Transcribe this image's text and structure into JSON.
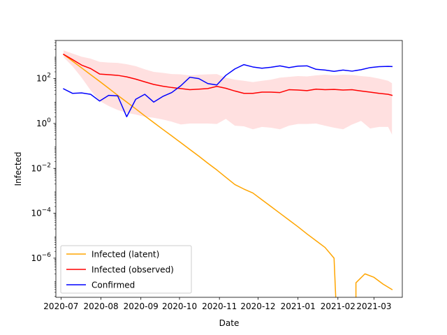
{
  "chart_data": {
    "type": "line",
    "xlabel": "Date",
    "ylabel": "Infected",
    "y_scale": "log",
    "ylim": [
      1.8e-08,
      5000
    ],
    "xlim": [
      "2020-06-27",
      "2021-03-23"
    ],
    "grid": false,
    "legend_position": "lower-left",
    "x_ticks": [
      "2020-07-01",
      "2020-08-01",
      "2020-09-01",
      "2020-10-01",
      "2020-11-01",
      "2020-12-01",
      "2021-01-01",
      "2021-02-01",
      "2021-03-01"
    ],
    "x_tick_labels": [
      "2020-07",
      "2020-08",
      "2020-09",
      "2020-10",
      "2020-11",
      "2020-12",
      "2021-01",
      "2021-02",
      "2021-03"
    ],
    "y_ticks": [
      1e-06,
      0.0001,
      0.01,
      1,
      100
    ],
    "y_tick_labels": [
      {
        "base": "10",
        "exp": "−6"
      },
      {
        "base": "10",
        "exp": "−4"
      },
      {
        "base": "10",
        "exp": "−2"
      },
      {
        "base": "10",
        "exp": "0"
      },
      {
        "base": "10",
        "exp": "2"
      }
    ],
    "series": [
      {
        "name": "Infected (latent)",
        "color": "#ffa500",
        "segments": [
          {
            "x": [
              "2020-07-03",
              "2020-07-10",
              "2020-07-17",
              "2020-07-24",
              "2020-07-31",
              "2020-08-07",
              "2020-08-14",
              "2020-08-21",
              "2020-08-28",
              "2020-09-04",
              "2020-09-11",
              "2020-09-18",
              "2020-09-25",
              "2020-10-02",
              "2020-10-09",
              "2020-10-16",
              "2020-10-23",
              "2020-10-30",
              "2020-11-06",
              "2020-11-13",
              "2020-11-20",
              "2020-11-27",
              "2020-12-04",
              "2020-12-11",
              "2020-12-18",
              "2020-12-25",
              "2021-01-01",
              "2021-01-08",
              "2021-01-15",
              "2021-01-22",
              "2021-01-29",
              "2021-02-01"
            ],
            "y": [
              1200,
              600,
              300,
              150,
              75,
              37,
              18,
              9,
              4.5,
              2.2,
              1.1,
              0.55,
              0.28,
              0.14,
              0.07,
              0.035,
              0.017,
              0.0085,
              0.004,
              0.0019,
              0.0012,
              0.0008,
              0.0004,
              0.0002,
              0.0001,
              5e-05,
              2.5e-05,
              1.2e-05,
              6e-06,
              3e-06,
              1e-06,
              1e-10
            ]
          },
          {
            "x": [
              "2021-02-15",
              "2021-02-15",
              "2021-02-22",
              "2021-03-01",
              "2021-03-08",
              "2021-03-15"
            ],
            "y": [
              1e-10,
              8e-08,
              2e-07,
              1.4e-07,
              7e-08,
              4e-08
            ]
          }
        ]
      },
      {
        "name": "Infected (observed)",
        "color": "#ff0000",
        "x": [
          "2020-07-03",
          "2020-07-10",
          "2020-07-17",
          "2020-07-24",
          "2020-07-31",
          "2020-08-07",
          "2020-08-14",
          "2020-08-21",
          "2020-08-28",
          "2020-09-04",
          "2020-09-11",
          "2020-09-18",
          "2020-09-25",
          "2020-10-02",
          "2020-10-09",
          "2020-10-16",
          "2020-10-23",
          "2020-10-30",
          "2020-11-06",
          "2020-11-13",
          "2020-11-20",
          "2020-11-27",
          "2020-12-04",
          "2020-12-11",
          "2020-12-18",
          "2020-12-25",
          "2021-01-01",
          "2021-01-08",
          "2021-01-15",
          "2021-01-22",
          "2021-01-29",
          "2021-02-05",
          "2021-02-12",
          "2021-02-19",
          "2021-02-26",
          "2021-03-05",
          "2021-03-12",
          "2021-03-15"
        ],
        "y": [
          1200,
          700,
          400,
          280,
          160,
          150,
          140,
          120,
          95,
          72,
          55,
          46,
          40,
          36,
          32,
          34,
          36,
          45,
          37,
          28,
          22,
          22,
          25,
          25,
          24,
          32,
          31,
          29,
          34,
          32,
          33,
          31,
          32,
          28,
          25,
          22,
          20,
          18
        ]
      },
      {
        "name": "Confirmed",
        "color": "#0000ff",
        "x": [
          "2020-07-03",
          "2020-07-10",
          "2020-07-17",
          "2020-07-24",
          "2020-07-31",
          "2020-08-07",
          "2020-08-14",
          "2020-08-21",
          "2020-08-28",
          "2020-09-04",
          "2020-09-11",
          "2020-09-18",
          "2020-09-25",
          "2020-10-02",
          "2020-10-09",
          "2020-10-16",
          "2020-10-23",
          "2020-10-30",
          "2020-11-06",
          "2020-11-13",
          "2020-11-20",
          "2020-11-27",
          "2020-12-04",
          "2020-12-11",
          "2020-12-18",
          "2020-12-25",
          "2021-01-01",
          "2021-01-08",
          "2021-01-15",
          "2021-01-22",
          "2021-01-29",
          "2021-02-05",
          "2021-02-12",
          "2021-02-19",
          "2021-02-26",
          "2021-03-05",
          "2021-03-12",
          "2021-03-15"
        ],
        "y": [
          35,
          22,
          23,
          20,
          10,
          18,
          17,
          2,
          12,
          20,
          9,
          16,
          24,
          48,
          115,
          100,
          60,
          52,
          140,
          270,
          420,
          330,
          290,
          320,
          370,
          310,
          360,
          370,
          260,
          240,
          210,
          240,
          215,
          250,
          310,
          340,
          350,
          345
        ]
      }
    ],
    "band": {
      "color": "#ff0000",
      "opacity": 0.12,
      "x": [
        "2020-07-03",
        "2020-07-10",
        "2020-07-17",
        "2020-07-24",
        "2020-07-31",
        "2020-08-07",
        "2020-08-14",
        "2020-08-21",
        "2020-08-28",
        "2020-09-04",
        "2020-09-11",
        "2020-09-18",
        "2020-09-25",
        "2020-10-02",
        "2020-10-09",
        "2020-10-16",
        "2020-10-23",
        "2020-10-30",
        "2020-11-06",
        "2020-11-13",
        "2020-11-20",
        "2020-11-27",
        "2020-12-04",
        "2020-12-11",
        "2020-12-18",
        "2020-12-25",
        "2021-01-01",
        "2021-01-08",
        "2021-01-15",
        "2021-01-22",
        "2021-01-29",
        "2021-02-05",
        "2021-02-12",
        "2021-02-19",
        "2021-02-26",
        "2021-03-05",
        "2021-03-12",
        "2021-03-15"
      ],
      "lower": [
        900,
        350,
        110,
        30,
        10,
        6,
        4,
        3,
        2.5,
        2,
        1.8,
        1.5,
        1.2,
        0.9,
        1.0,
        1.0,
        1.0,
        0.95,
        1.6,
        0.8,
        0.75,
        0.55,
        0.7,
        0.65,
        0.55,
        0.8,
        0.95,
        0.95,
        1.0,
        0.8,
        0.65,
        0.55,
        0.9,
        1.3,
        0.6,
        0.7,
        0.7,
        0.32
      ],
      "upper": [
        1800,
        1300,
        950,
        780,
        560,
        520,
        500,
        440,
        360,
        260,
        200,
        180,
        160,
        155,
        140,
        150,
        155,
        160,
        110,
        90,
        80,
        70,
        80,
        90,
        110,
        120,
        130,
        125,
        140,
        150,
        140,
        150,
        145,
        130,
        120,
        100,
        80,
        62
      ]
    }
  }
}
